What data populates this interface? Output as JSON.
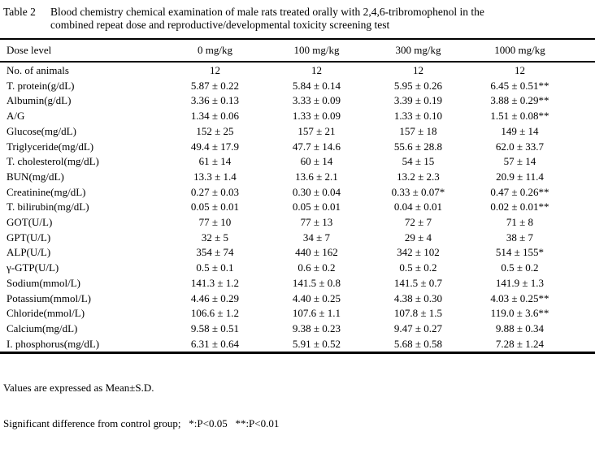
{
  "title": {
    "label": "Table 2",
    "line1": "Blood chemistry chemical examination of male rats treated orally with 2,4,6-tribromophenol in the",
    "line2": "combined repeat dose and reproductive/developmental toxicity screening test"
  },
  "table": {
    "header": [
      "Dose level",
      "0 mg/kg",
      "100 mg/kg",
      "300 mg/kg",
      "1000 mg/kg"
    ],
    "rows": [
      {
        "label": "No. of animals",
        "values": [
          "12",
          "12",
          "12",
          "12"
        ]
      },
      {
        "label": "T. protein(g/dL)",
        "values": [
          "5.87 ± 0.22",
          "5.84 ± 0.14",
          "5.95 ± 0.26",
          "6.45 ± 0.51**"
        ]
      },
      {
        "label": "Albumin(g/dL)",
        "values": [
          "3.36 ± 0.13",
          "3.33 ± 0.09",
          "3.39 ± 0.19",
          "3.88 ± 0.29**"
        ]
      },
      {
        "label": "A/G",
        "values": [
          "1.34 ± 0.06",
          "1.33 ± 0.09",
          "1.33 ± 0.10",
          "1.51 ± 0.08**"
        ]
      },
      {
        "label": "Glucose(mg/dL)",
        "values": [
          "152 ± 25",
          "157 ± 21",
          "157 ± 18",
          "149 ± 14"
        ]
      },
      {
        "label": "Triglyceride(mg/dL)",
        "values": [
          "49.4 ± 17.9",
          "47.7 ± 14.6",
          "55.6 ± 28.8",
          "62.0 ± 33.7"
        ]
      },
      {
        "label": "T. cholesterol(mg/dL)",
        "values": [
          "61 ± 14",
          "60 ± 14",
          "54 ± 15",
          "57 ± 14"
        ]
      },
      {
        "label": "BUN(mg/dL)",
        "values": [
          "13.3 ± 1.4",
          "13.6 ± 2.1",
          "13.2 ± 2.3",
          "20.9 ± 11.4"
        ]
      },
      {
        "label": "Creatinine(mg/dL)",
        "values": [
          "0.27 ± 0.03",
          "0.30 ± 0.04",
          "0.33 ± 0.07*",
          "0.47 ± 0.26**"
        ]
      },
      {
        "label": "T. bilirubin(mg/dL)",
        "values": [
          "0.05 ± 0.01",
          "0.05 ± 0.01",
          "0.04 ± 0.01",
          "0.02 ± 0.01**"
        ]
      },
      {
        "label": "GOT(U/L)",
        "values": [
          "77 ± 10",
          "77 ± 13",
          "72 ± 7",
          "71 ± 8"
        ]
      },
      {
        "label": "GPT(U/L)",
        "values": [
          "32 ± 5",
          "34 ± 7",
          "29 ± 4",
          "38 ± 7"
        ]
      },
      {
        "label": "ALP(U/L)",
        "values": [
          "354 ± 74",
          "440 ± 162",
          "342 ± 102",
          "514 ± 155*"
        ]
      },
      {
        "label": "γ-GTP(U/L)",
        "values": [
          "0.5 ± 0.1",
          "0.6 ± 0.2",
          "0.5 ± 0.2",
          "0.5 ± 0.2"
        ]
      },
      {
        "label": "Sodium(mmol/L)",
        "values": [
          "141.3 ± 1.2",
          "141.5 ± 0.8",
          "141.5 ± 0.7",
          "141.9 ± 1.3"
        ]
      },
      {
        "label": "Potassium(mmol/L)",
        "values": [
          "4.46 ± 0.29",
          "4.40 ± 0.25",
          "4.38 ± 0.30",
          "4.03 ± 0.25**"
        ]
      },
      {
        "label": "Chloride(mmol/L)",
        "values": [
          "106.6 ± 1.2",
          "107.6 ± 1.1",
          "107.8 ± 1.5",
          "119.0 ± 3.6**"
        ]
      },
      {
        "label": "Calcium(mg/dL)",
        "values": [
          "9.58 ± 0.51",
          "9.38 ± 0.23",
          "9.47 ± 0.27",
          "9.88 ± 0.34"
        ]
      },
      {
        "label": "I. phosphorus(mg/dL)",
        "values": [
          "6.31 ± 0.64",
          "5.91 ± 0.52",
          "5.68 ± 0.58",
          "7.28 ± 1.24"
        ]
      }
    ]
  },
  "footnotes": [
    "Values are expressed as Mean±S.D.",
    "Significant difference from control group;   *:P<0.05   **:P<0.01"
  ]
}
